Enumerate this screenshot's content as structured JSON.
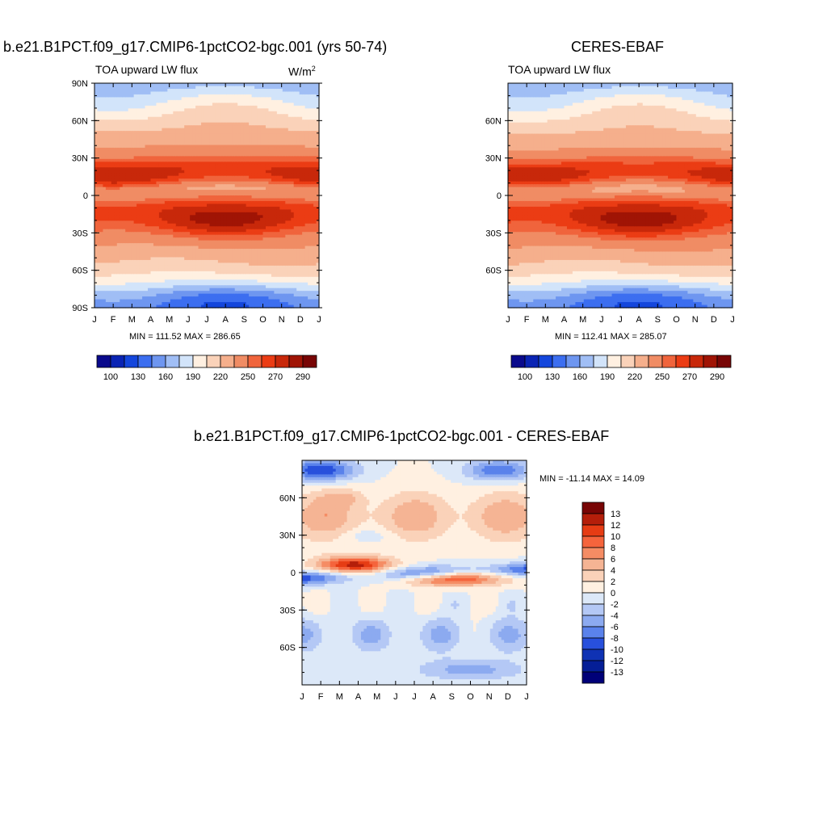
{
  "chart_data": [
    {
      "type": "heatmap",
      "id": "model",
      "title": "b.e21.B1PCT.f09_g17.CMIP6-1pctCO2-bgc.001 (yrs 50-74)",
      "subtitle": "TOA upward LW flux",
      "units_base": "W/m",
      "units_exp": "2",
      "x_tick_labels": [
        "J",
        "F",
        "M",
        "A",
        "M",
        "J",
        "J",
        "A",
        "S",
        "O",
        "N",
        "D",
        "J"
      ],
      "y_tick_labels": [
        "90N",
        "60N",
        "30N",
        "0",
        "30S",
        "60S",
        "90S"
      ],
      "y_tick_values": [
        90,
        60,
        30,
        0,
        -30,
        -60,
        -90
      ],
      "min": 111.52,
      "max": 286.65,
      "stats_text": "MIN = 111.52 MAX = 286.65",
      "colorbar_labels": [
        "100",
        "130",
        "160",
        "190",
        "220",
        "250",
        "270",
        "290"
      ]
    },
    {
      "type": "heatmap",
      "id": "obs",
      "title": "CERES-EBAF",
      "subtitle": "TOA upward LW flux",
      "x_tick_labels": [
        "J",
        "F",
        "M",
        "A",
        "M",
        "J",
        "J",
        "A",
        "S",
        "O",
        "N",
        "D",
        "J"
      ],
      "y_tick_labels": [
        "60N",
        "30N",
        "0",
        "30S",
        "60S"
      ],
      "y_tick_values": [
        60,
        30,
        0,
        -30,
        -60
      ],
      "min": 112.41,
      "max": 285.07,
      "stats_text": "MIN = 112.41 MAX = 285.07",
      "colorbar_labels": [
        "100",
        "130",
        "160",
        "190",
        "220",
        "250",
        "270",
        "290"
      ]
    },
    {
      "type": "heatmap",
      "id": "diff",
      "title": "b.e21.B1PCT.f09_g17.CMIP6-1pctCO2-bgc.001 - CERES-EBAF",
      "x_tick_labels": [
        "J",
        "F",
        "M",
        "A",
        "M",
        "J",
        "J",
        "A",
        "S",
        "O",
        "N",
        "D",
        "J"
      ],
      "y_tick_labels": [
        "60N",
        "30N",
        "0",
        "30S",
        "60S"
      ],
      "y_tick_values": [
        60,
        30,
        0,
        -30,
        -60
      ],
      "min": -11.14,
      "max": 14.09,
      "stats_text": "MIN = -11.14 MAX =  14.09",
      "colorbar_labels": [
        "13",
        "12",
        "10",
        "8",
        "6",
        "4",
        "2",
        "0",
        "-2",
        "-4",
        "-6",
        "-8",
        "-10",
        "-12",
        "-13"
      ]
    }
  ],
  "palettes": {
    "flux": [
      "#0a0a8c",
      "#0a24b4",
      "#1446dc",
      "#3c6ef0",
      "#6e96f0",
      "#a0bef5",
      "#d2e4fa",
      "#fff0e1",
      "#fad2b9",
      "#f5af8c",
      "#f08c64",
      "#f0643c",
      "#eb3c14",
      "#c8280a",
      "#a01405",
      "#780505"
    ],
    "diff": [
      "#780505",
      "#b41e0a",
      "#e63c14",
      "#f5643c",
      "#f58c64",
      "#f5b494",
      "#fad2b9",
      "#fff0e1",
      "#dce8f8",
      "#b4c8f5",
      "#8caaf0",
      "#5a82eb",
      "#2850dc",
      "#0f32b4",
      "#051e96",
      "#000078"
    ]
  }
}
